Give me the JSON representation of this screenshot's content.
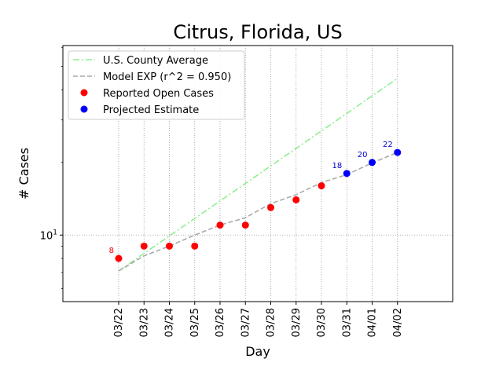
{
  "chart_data": {
    "type": "line",
    "title": "Citrus, Florida, US",
    "xlabel": "Day",
    "ylabel": "# Cases",
    "yscale": "log",
    "ylim": [
      5.3,
      61
    ],
    "grid": "dotted",
    "legend_position": "top-left",
    "categories": [
      "03/22",
      "03/23",
      "03/24",
      "03/25",
      "03/26",
      "03/27",
      "03/28",
      "03/29",
      "03/30",
      "03/31",
      "04/01",
      "04/02"
    ],
    "y_tick_label": "10^1",
    "series": [
      {
        "name": "U.S. County Average",
        "style": "dash-dot",
        "color": "#90ee90",
        "x": [
          "03/22",
          "04/02"
        ],
        "values": [
          7.1,
          44.6
        ]
      },
      {
        "name": "Model EXP (r^2 = 0.950)",
        "style": "dashed",
        "color": "#aaaaaa",
        "x": [
          "03/22",
          "03/23",
          "03/24",
          "03/25",
          "03/26",
          "03/27",
          "03/28",
          "03/29",
          "03/30",
          "03/31",
          "04/01",
          "04/02"
        ],
        "values": [
          7.1,
          8.2,
          9.0,
          10.0,
          11.0,
          11.8,
          13.5,
          14.7,
          16.5,
          17.8,
          19.9,
          22.0
        ]
      },
      {
        "name": "Reported Open Cases",
        "style": "markers",
        "color": "#ff0000",
        "x": [
          "03/22",
          "03/23",
          "03/24",
          "03/25",
          "03/26",
          "03/27",
          "03/28",
          "03/29",
          "03/30"
        ],
        "values": [
          8,
          9,
          9,
          9,
          11,
          11,
          13,
          14,
          16
        ]
      },
      {
        "name": "Projected Estimate",
        "style": "markers",
        "color": "#0000ff",
        "x": [
          "03/31",
          "04/01",
          "04/02"
        ],
        "values": [
          18,
          20,
          22
        ]
      }
    ],
    "annotations": [
      {
        "text": "8",
        "x": "03/22",
        "y": 8,
        "color": "#ff0000"
      },
      {
        "text": "18",
        "x": "03/31",
        "y": 18,
        "color": "#0000cc"
      },
      {
        "text": "20",
        "x": "04/01",
        "y": 20,
        "color": "#0000cc"
      },
      {
        "text": "22",
        "x": "04/02",
        "y": 22,
        "color": "#0000cc"
      }
    ]
  }
}
